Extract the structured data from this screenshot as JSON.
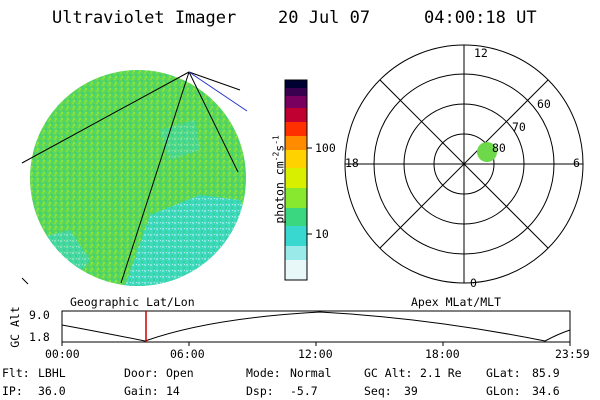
{
  "header": {
    "title": "Ultraviolet Imager",
    "date": "20 Jul 07",
    "time": "04:00:18 UT"
  },
  "colorbar": {
    "label": "photon cm",
    "label_exp1": "-2",
    "label_mid": "s",
    "label_exp2": "-1",
    "tick_100": "100",
    "tick_10": "10",
    "scale": "log",
    "colors": [
      "#000033",
      "#3a0050",
      "#7a0060",
      "#c00030",
      "#ff3000",
      "#ff8c00",
      "#ffd200",
      "#d8f000",
      "#88e830",
      "#3ad680",
      "#38d8d0",
      "#9aeaea",
      "#e8f8f8"
    ]
  },
  "earth_disk": {
    "fill_color": "#5fd85a",
    "cyan_color": "#3cd9c6",
    "caption": "Geographic Lat/Lon"
  },
  "polar_plot": {
    "caption": "Apex MLat/MLT",
    "mlt_top": "12",
    "mlt_right": "6",
    "mlt_bottom": "0",
    "mlt_left": "18",
    "lat_60": "60",
    "lat_70": "70",
    "lat_80": "80",
    "spot_color": "#6cd84a"
  },
  "altitude_plot": {
    "ylabel": "GC Alt",
    "y_top": "9.0",
    "y_bottom": "1.8",
    "x_ticks": [
      "00:00",
      "06:00",
      "12:00",
      "18:00",
      "23:59"
    ],
    "marker_time": "04:00",
    "marker_color": "#cc0000"
  },
  "footer": {
    "flt_label": "Flt:",
    "flt_value": "LBHL",
    "ip_label": "IP:",
    "ip_value": "36.0",
    "door_label": "Door:",
    "door_value": "Open",
    "gain_label": "Gain:",
    "gain_value": "14",
    "mode_label": "Mode:",
    "mode_value": "Normal",
    "dsp_label": "Dsp:",
    "dsp_value": "-5.7",
    "gcalt_label": "GC Alt:",
    "gcalt_value": "2.1 Re",
    "seq_label": "Seq:",
    "seq_value": "39",
    "glat_label": "GLat:",
    "glat_value": "85.9",
    "glon_label": "GLon:",
    "glon_value": "34.6"
  }
}
